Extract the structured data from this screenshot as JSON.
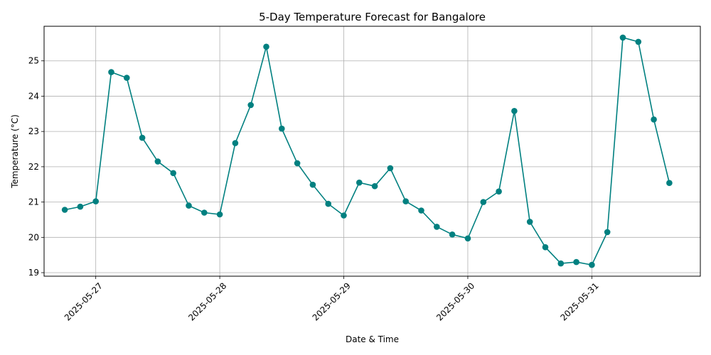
{
  "chart_data": {
    "type": "line",
    "title": "5-Day Temperature Forecast for Bangalore",
    "xlabel": "Date & Time",
    "ylabel": "Temperature (°C)",
    "ylim": [
      18.9,
      25.98
    ],
    "xlim": [
      "2025-05-26T14:00",
      "2025-05-31T21:00"
    ],
    "y_ticks": [
      19,
      20,
      21,
      22,
      23,
      24,
      25
    ],
    "x_ticks": [
      "2025-05-27",
      "2025-05-28",
      "2025-05-29",
      "2025-05-30",
      "2025-05-31"
    ],
    "x_tick_rotation": 45,
    "grid": true,
    "legend": "none",
    "color": "#008080",
    "marker": "circle",
    "series": [
      {
        "x": [
          "2025-05-26T18:00",
          "2025-05-26T21:00",
          "2025-05-27T00:00",
          "2025-05-27T03:00",
          "2025-05-27T06:00",
          "2025-05-27T09:00",
          "2025-05-27T12:00",
          "2025-05-27T15:00",
          "2025-05-27T18:00",
          "2025-05-27T21:00",
          "2025-05-28T00:00",
          "2025-05-28T03:00",
          "2025-05-28T06:00",
          "2025-05-28T09:00",
          "2025-05-28T12:00",
          "2025-05-28T15:00",
          "2025-05-28T18:00",
          "2025-05-28T21:00",
          "2025-05-29T00:00",
          "2025-05-29T03:00",
          "2025-05-29T06:00",
          "2025-05-29T09:00",
          "2025-05-29T12:00",
          "2025-05-29T15:00",
          "2025-05-29T18:00",
          "2025-05-29T21:00",
          "2025-05-30T00:00",
          "2025-05-30T03:00",
          "2025-05-30T06:00",
          "2025-05-30T09:00",
          "2025-05-30T12:00",
          "2025-05-30T15:00",
          "2025-05-30T18:00",
          "2025-05-30T21:00",
          "2025-05-31T00:00",
          "2025-05-31T03:00",
          "2025-05-31T06:00",
          "2025-05-31T09:00",
          "2025-05-31T12:00",
          "2025-05-31T15:00"
        ],
        "values": [
          20.78,
          20.87,
          21.02,
          24.68,
          24.52,
          22.82,
          22.15,
          21.82,
          20.9,
          20.7,
          20.65,
          22.67,
          23.75,
          25.4,
          23.08,
          22.1,
          21.49,
          20.95,
          20.62,
          21.55,
          21.45,
          21.96,
          21.02,
          20.76,
          20.3,
          20.08,
          19.97,
          21.0,
          21.3,
          23.58,
          20.44,
          19.72,
          19.26,
          19.3,
          19.22,
          20.15,
          25.66,
          25.54,
          23.34,
          21.54
        ]
      }
    ]
  }
}
